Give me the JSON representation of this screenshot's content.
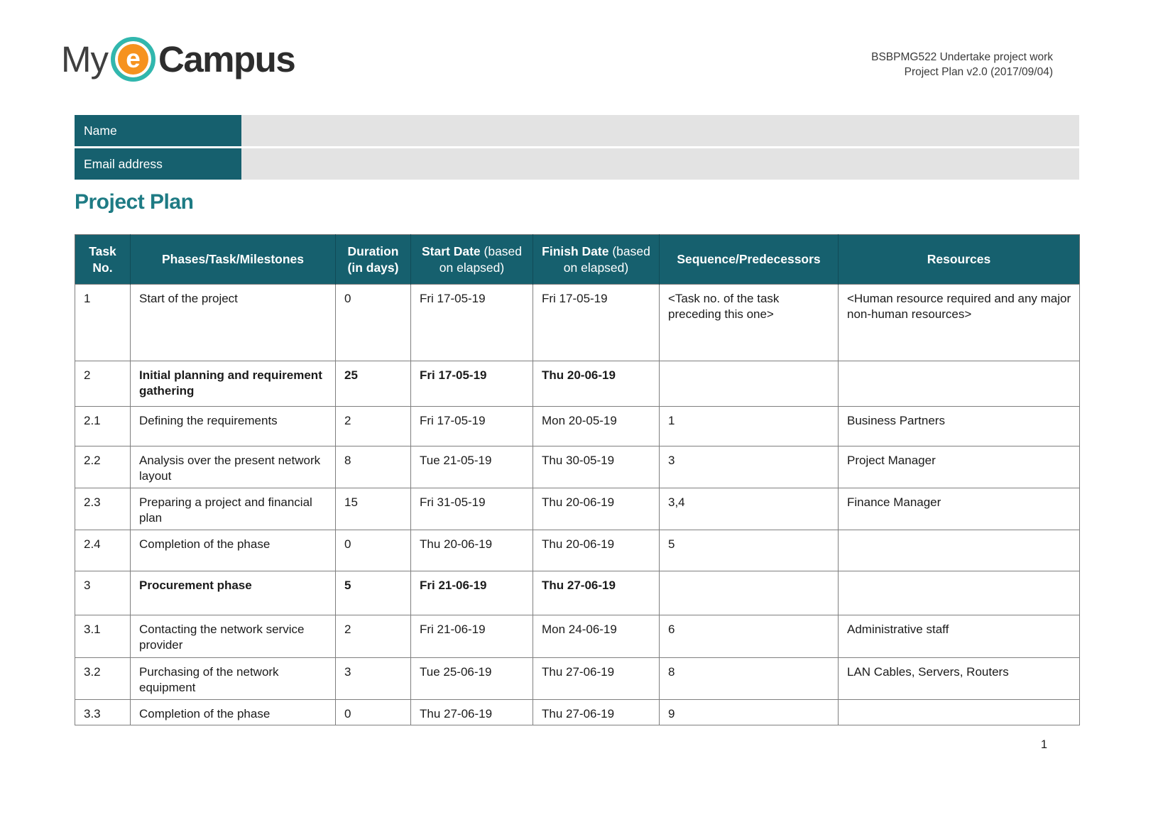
{
  "logo": {
    "my": "My",
    "e": "e",
    "campus": "Campus"
  },
  "doc_info": {
    "line1": "BSBPMG522 Undertake project work",
    "line2": "Project Plan v2.0 (2017/09/04)"
  },
  "form": {
    "fields": [
      {
        "label": "Name",
        "value": ""
      },
      {
        "label": "Email address",
        "value": ""
      }
    ]
  },
  "section": {
    "title": "Project Plan"
  },
  "table": {
    "columns": [
      {
        "key": "task-no",
        "bold": "Task No.",
        "normal": ""
      },
      {
        "key": "phases",
        "bold": "Phases/Task/Milestones",
        "normal": ""
      },
      {
        "key": "duration",
        "bold": "Duration (in days)",
        "normal": ""
      },
      {
        "key": "start-date",
        "bold": "Start Date",
        "normal": "(based on elapsed)"
      },
      {
        "key": "finish-date",
        "bold": "Finish Date",
        "normal": "(based on elapsed)"
      },
      {
        "key": "sequence",
        "bold": "Sequence/Predecessors",
        "normal": ""
      },
      {
        "key": "resources",
        "bold": "Resources",
        "normal": ""
      }
    ],
    "rows": [
      {
        "no": "1",
        "task": "Start of the project",
        "duration": "0",
        "start": "Fri 17-05-19",
        "finish": "Fri 17-05-19",
        "sequence": "<Task no. of the task preceding this one>",
        "resources": "<Human resource required and any major non-human resources>",
        "phase_summary": false
      },
      {
        "no": "2",
        "task": "Initial planning and requirement gathering",
        "duration": "25",
        "start": "Fri 17-05-19",
        "finish": "Thu 20-06-19",
        "sequence": "",
        "resources": "",
        "phase_summary": true
      },
      {
        "no": "2.1",
        "task": "Defining the requirements",
        "duration": "2",
        "start": "Fri 17-05-19",
        "finish": "Mon 20-05-19",
        "sequence": "1",
        "resources": "Business Partners",
        "phase_summary": false
      },
      {
        "no": "2.2",
        "task": "Analysis over the present network layout",
        "duration": "8",
        "start": "Tue 21-05-19",
        "finish": "Thu 30-05-19",
        "sequence": "3",
        "resources": "Project Manager",
        "phase_summary": false
      },
      {
        "no": "2.3",
        "task": "Preparing a project and financial plan",
        "duration": "15",
        "start": "Fri 31-05-19",
        "finish": "Thu 20-06-19",
        "sequence": "3,4",
        "resources": "Finance Manager",
        "phase_summary": false
      },
      {
        "no": "2.4",
        "task": "Completion of the phase",
        "duration": "0",
        "start": "Thu 20-06-19",
        "finish": "Thu 20-06-19",
        "sequence": "5",
        "resources": "",
        "phase_summary": false
      },
      {
        "no": "3",
        "task": "Procurement phase",
        "duration": "5",
        "start": "Fri 21-06-19",
        "finish": "Thu 27-06-19",
        "sequence": "",
        "resources": "",
        "phase_summary": true
      },
      {
        "no": "3.1",
        "task": "Contacting the network service provider",
        "duration": "2",
        "start": "Fri 21-06-19",
        "finish": "Mon 24-06-19",
        "sequence": "6",
        "resources": "Administrative staff",
        "phase_summary": false
      },
      {
        "no": "3.2",
        "task": "Purchasing of the network equipment",
        "duration": "3",
        "start": "Tue 25-06-19",
        "finish": "Thu 27-06-19",
        "sequence": "8",
        "resources": "LAN Cables, Servers, Routers",
        "phase_summary": false
      },
      {
        "no": "3.3",
        "task": "Completion of the phase",
        "duration": "0",
        "start": "Thu 27-06-19",
        "finish": "Thu 27-06-19",
        "sequence": "9",
        "resources": "",
        "phase_summary": false
      }
    ]
  },
  "footer": {
    "page_number": "1"
  },
  "colors": {
    "teal_dark": "#16606e",
    "teal_heading": "#1e7b84",
    "field_gray": "#e3e3e3",
    "logo_orange": "#f6921e",
    "logo_teal_ring": "#31b7ae",
    "text_dark": "#1b1b1b",
    "border_gray": "#7f7f7f"
  }
}
